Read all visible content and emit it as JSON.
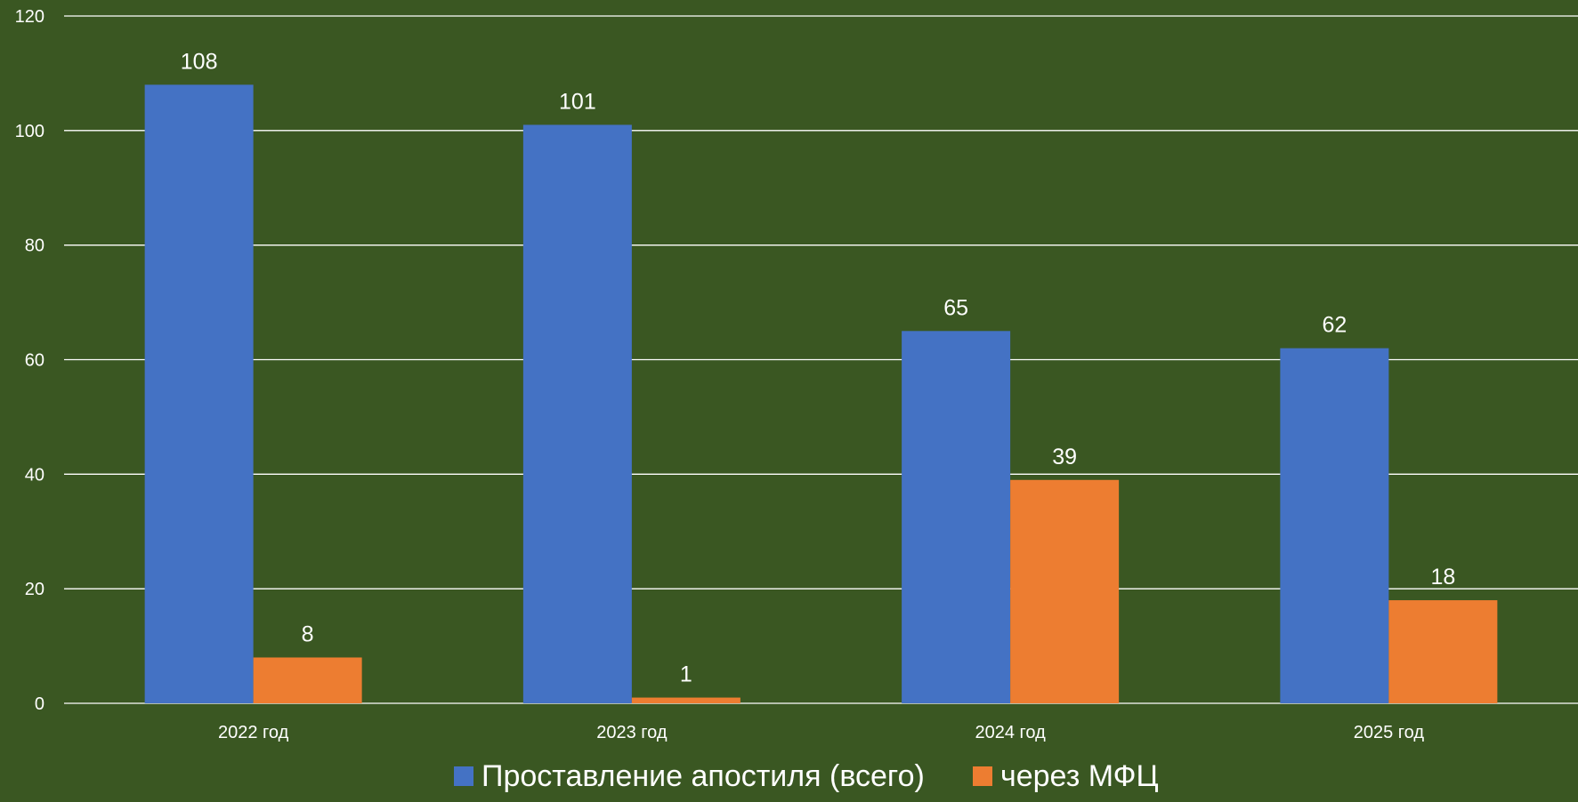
{
  "chart_data": {
    "type": "bar",
    "title": "",
    "xlabel": "",
    "ylabel": "",
    "categories": [
      "2022 год",
      "2023 год",
      "2024 год",
      "2025 год"
    ],
    "series": [
      {
        "name": "Проставление апостиля (всего)",
        "values": [
          108,
          101,
          65,
          62
        ],
        "color": "#4472c4"
      },
      {
        "name": "через МФЦ",
        "values": [
          8,
          1,
          39,
          18
        ],
        "color": "#ed7d31"
      }
    ],
    "yticks": [
      "0",
      "20",
      "40",
      "60",
      "80",
      "100",
      "120"
    ],
    "ylim": [
      0,
      120
    ],
    "grid": true,
    "legend": "bottom",
    "data_labels": true,
    "colors": {
      "background": "#3a5722",
      "grid": "#ffffff",
      "text": "#ffffff"
    }
  }
}
